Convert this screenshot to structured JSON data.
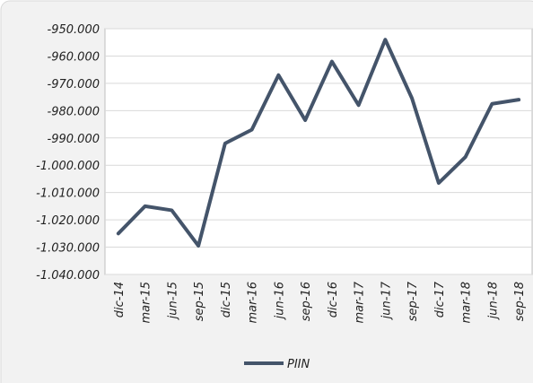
{
  "chart_data": {
    "type": "line",
    "categories": [
      "dic-14",
      "mar-15",
      "jun-15",
      "sep-15",
      "dic-15",
      "mar-16",
      "jun-16",
      "sep-16",
      "dic-16",
      "mar-17",
      "jun-17",
      "sep-17",
      "dic-17",
      "mar-18",
      "jun-18",
      "sep-18"
    ],
    "series": [
      {
        "name": "PIIN",
        "color": "#44546a",
        "values": [
          -1025000,
          -1015000,
          -1016500,
          -1029500,
          -992000,
          -987000,
          -967000,
          -983500,
          -962000,
          -978000,
          -954000,
          -975500,
          -1006500,
          -997000,
          -977500,
          -976000
        ]
      }
    ],
    "ylim": [
      -1040000,
      -950000
    ],
    "yticks": [
      {
        "value": -1040000,
        "label": "-1.040.000"
      },
      {
        "value": -1030000,
        "label": "-1.030.000"
      },
      {
        "value": -1020000,
        "label": "-1.020.000"
      },
      {
        "value": -1010000,
        "label": "-1.010.000"
      },
      {
        "value": -1000000,
        "label": "-1.000.000"
      },
      {
        "value": -990000,
        "label": "-990.000"
      },
      {
        "value": -980000,
        "label": "-980.000"
      },
      {
        "value": -970000,
        "label": "-970.000"
      },
      {
        "value": -960000,
        "label": "-960.000"
      },
      {
        "value": -950000,
        "label": "-950.000"
      }
    ],
    "grid": true,
    "legend": "bottom"
  }
}
